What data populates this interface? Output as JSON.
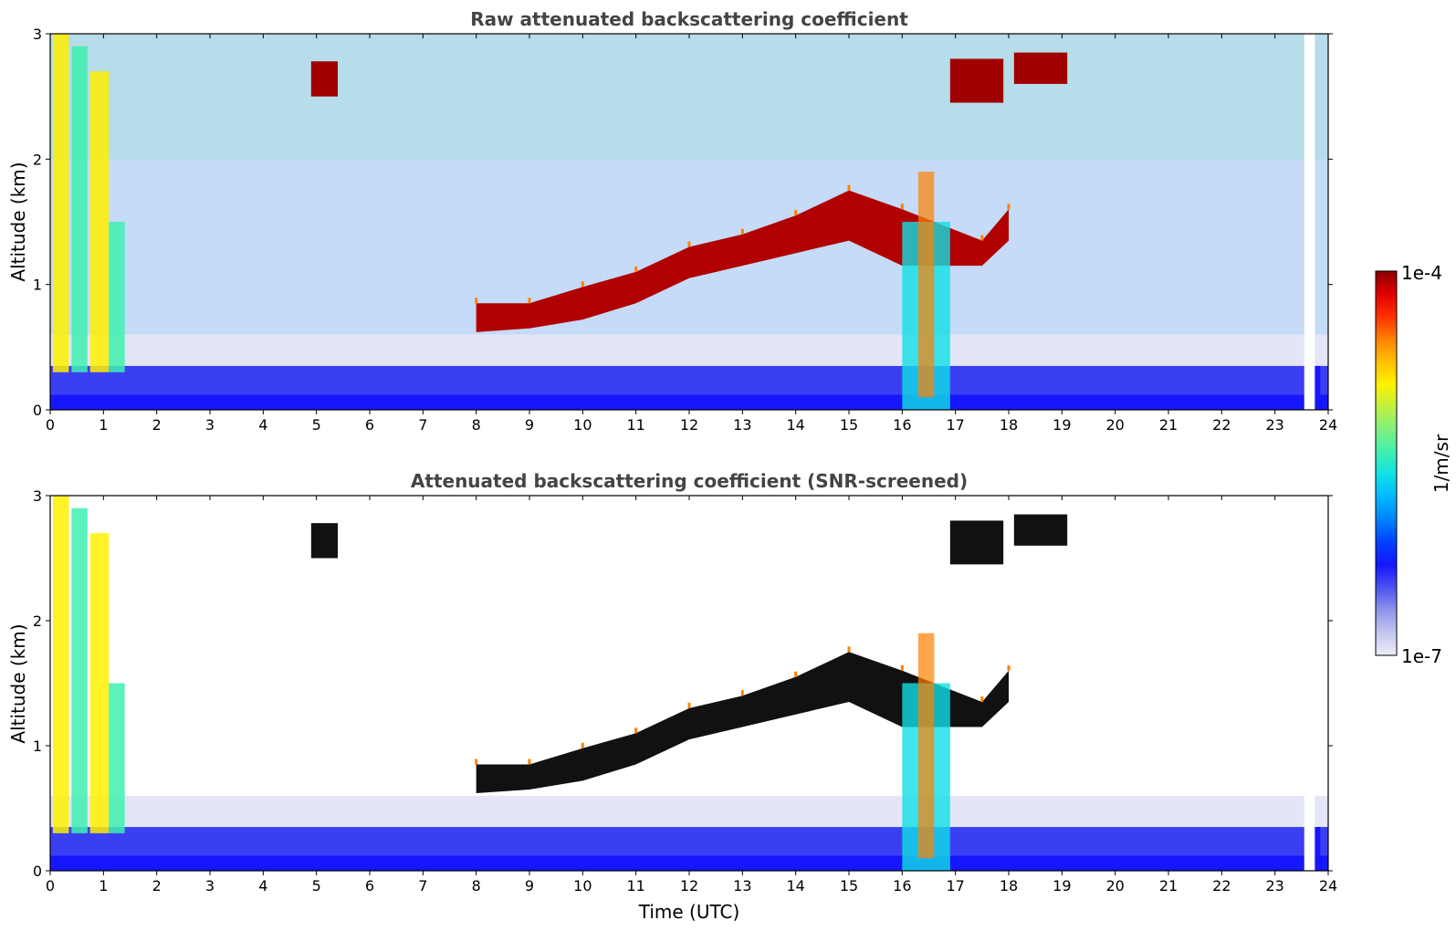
{
  "chart_data": [
    {
      "type": "heatmap",
      "title": "Raw attenuated backscattering coefficient",
      "xlabel": "",
      "ylabel": "Altitude (km)",
      "xlim": [
        0,
        24
      ],
      "ylim": [
        0,
        3
      ],
      "x_ticks": [
        "0",
        "1",
        "2",
        "3",
        "4",
        "5",
        "6",
        "7",
        "8",
        "9",
        "10",
        "11",
        "12",
        "13",
        "14",
        "15",
        "16",
        "17",
        "18",
        "19",
        "20",
        "21",
        "22",
        "23",
        "24"
      ],
      "y_ticks": [
        "0",
        "1",
        "2",
        "3"
      ],
      "cloud_layers": [
        {
          "t": 8.0,
          "base": 0.62,
          "top": 0.85
        },
        {
          "t": 9.0,
          "base": 0.65,
          "top": 0.85
        },
        {
          "t": 10.0,
          "base": 0.72,
          "top": 0.98
        },
        {
          "t": 11.0,
          "base": 0.85,
          "top": 1.1
        },
        {
          "t": 12.0,
          "base": 1.05,
          "top": 1.3
        },
        {
          "t": 13.0,
          "base": 1.15,
          "top": 1.4
        },
        {
          "t": 14.0,
          "base": 1.25,
          "top": 1.55
        },
        {
          "t": 15.0,
          "base": 1.35,
          "top": 1.75
        },
        {
          "t": 16.0,
          "base": 1.15,
          "top": 1.6
        },
        {
          "t": 17.5,
          "base": 1.15,
          "top": 1.35
        },
        {
          "t": 18.0,
          "base": 1.35,
          "top": 1.6
        }
      ],
      "upper_layers": [
        {
          "t_start": 4.9,
          "t_end": 5.4,
          "base": 2.5,
          "top": 2.78
        },
        {
          "t_start": 16.9,
          "t_end": 17.9,
          "base": 2.45,
          "top": 2.8
        },
        {
          "t_start": 18.1,
          "t_end": 19.1,
          "base": 2.6,
          "top": 2.85
        }
      ]
    },
    {
      "type": "heatmap",
      "title": "Attenuated backscattering coefficient (SNR-screened)",
      "xlabel": "Time (UTC)",
      "ylabel": "Altitude (km)",
      "xlim": [
        0,
        24
      ],
      "ylim": [
        0,
        3
      ],
      "x_ticks": [
        "0",
        "1",
        "2",
        "3",
        "4",
        "5",
        "6",
        "7",
        "8",
        "9",
        "10",
        "11",
        "12",
        "13",
        "14",
        "15",
        "16",
        "17",
        "18",
        "19",
        "20",
        "21",
        "22",
        "23",
        "24"
      ],
      "y_ticks": [
        "0",
        "1",
        "2",
        "3"
      ]
    }
  ],
  "colorbar": {
    "label": "1/m/sr",
    "min_label": "1e-7",
    "max_label": "1e-4",
    "colors": [
      "#eceef9",
      "#c3c6f0",
      "#8f93ea",
      "#4d52f0",
      "#1616ff",
      "#0040ff",
      "#0080ff",
      "#00b8ff",
      "#10e0e6",
      "#40f0b0",
      "#80f080",
      "#c0f040",
      "#fff000",
      "#ffc000",
      "#ff8000",
      "#ff3000",
      "#e00000",
      "#8b0000"
    ]
  }
}
